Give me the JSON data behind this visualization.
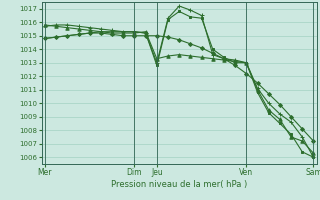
{
  "title": "",
  "xlabel": "Pression niveau de la mer( hPa )",
  "bg_color": "#cce8e0",
  "grid_color": "#99ccbb",
  "line_color": "#2d6e2d",
  "vline_color": "#336655",
  "ylim": [
    1005.5,
    1017.5
  ],
  "xlim": [
    -0.3,
    24.3
  ],
  "day_positions": [
    0,
    8,
    10,
    18,
    24
  ],
  "day_labels": [
    "Mer",
    "Dim",
    "Jeu",
    "Ven",
    "Sam"
  ],
  "series": [
    [
      1014.8,
      1014.9,
      1015.0,
      1015.1,
      1015.2,
      1015.2,
      1015.1,
      1015.0,
      1015.0,
      1015.0,
      1015.0,
      1014.9,
      1014.7,
      1014.4,
      1014.1,
      1013.7,
      1013.3,
      1012.8,
      1012.2,
      1011.5,
      1010.7,
      1009.9,
      1009.0,
      1008.1,
      1007.2
    ],
    [
      1015.8,
      1015.7,
      1015.6,
      1015.5,
      1015.4,
      1015.3,
      1015.2,
      1015.2,
      1015.2,
      1015.3,
      1013.3,
      1013.5,
      1013.6,
      1013.5,
      1013.4,
      1013.3,
      1013.2,
      1013.1,
      1013.0,
      1011.0,
      1009.5,
      1008.8,
      1007.5,
      1007.2,
      1006.3
    ],
    [
      1015.7,
      1015.8,
      1015.8,
      1015.7,
      1015.6,
      1015.5,
      1015.4,
      1015.3,
      1015.3,
      1015.2,
      1013.0,
      1016.3,
      1017.2,
      1016.9,
      1016.5,
      1013.6,
      1013.3,
      1013.2,
      1013.0,
      1011.1,
      1010.0,
      1009.2,
      1008.6,
      1007.5,
      1006.0
    ],
    [
      1014.8,
      1014.9,
      1015.0,
      1015.1,
      1015.2,
      1015.3,
      1015.3,
      1015.3,
      1015.3,
      1015.2,
      1012.8,
      1016.2,
      1016.8,
      1016.4,
      1016.3,
      1014.0,
      1013.4,
      1013.0,
      1013.0,
      1010.8,
      1009.3,
      1008.5,
      1007.7,
      1006.4,
      1006.0
    ]
  ],
  "marker_styles": [
    "D",
    "^",
    "+",
    "s"
  ],
  "marker_sizes": [
    2.0,
    2.5,
    3.5,
    2.0
  ],
  "linewidths": [
    0.8,
    0.8,
    0.8,
    0.8
  ]
}
